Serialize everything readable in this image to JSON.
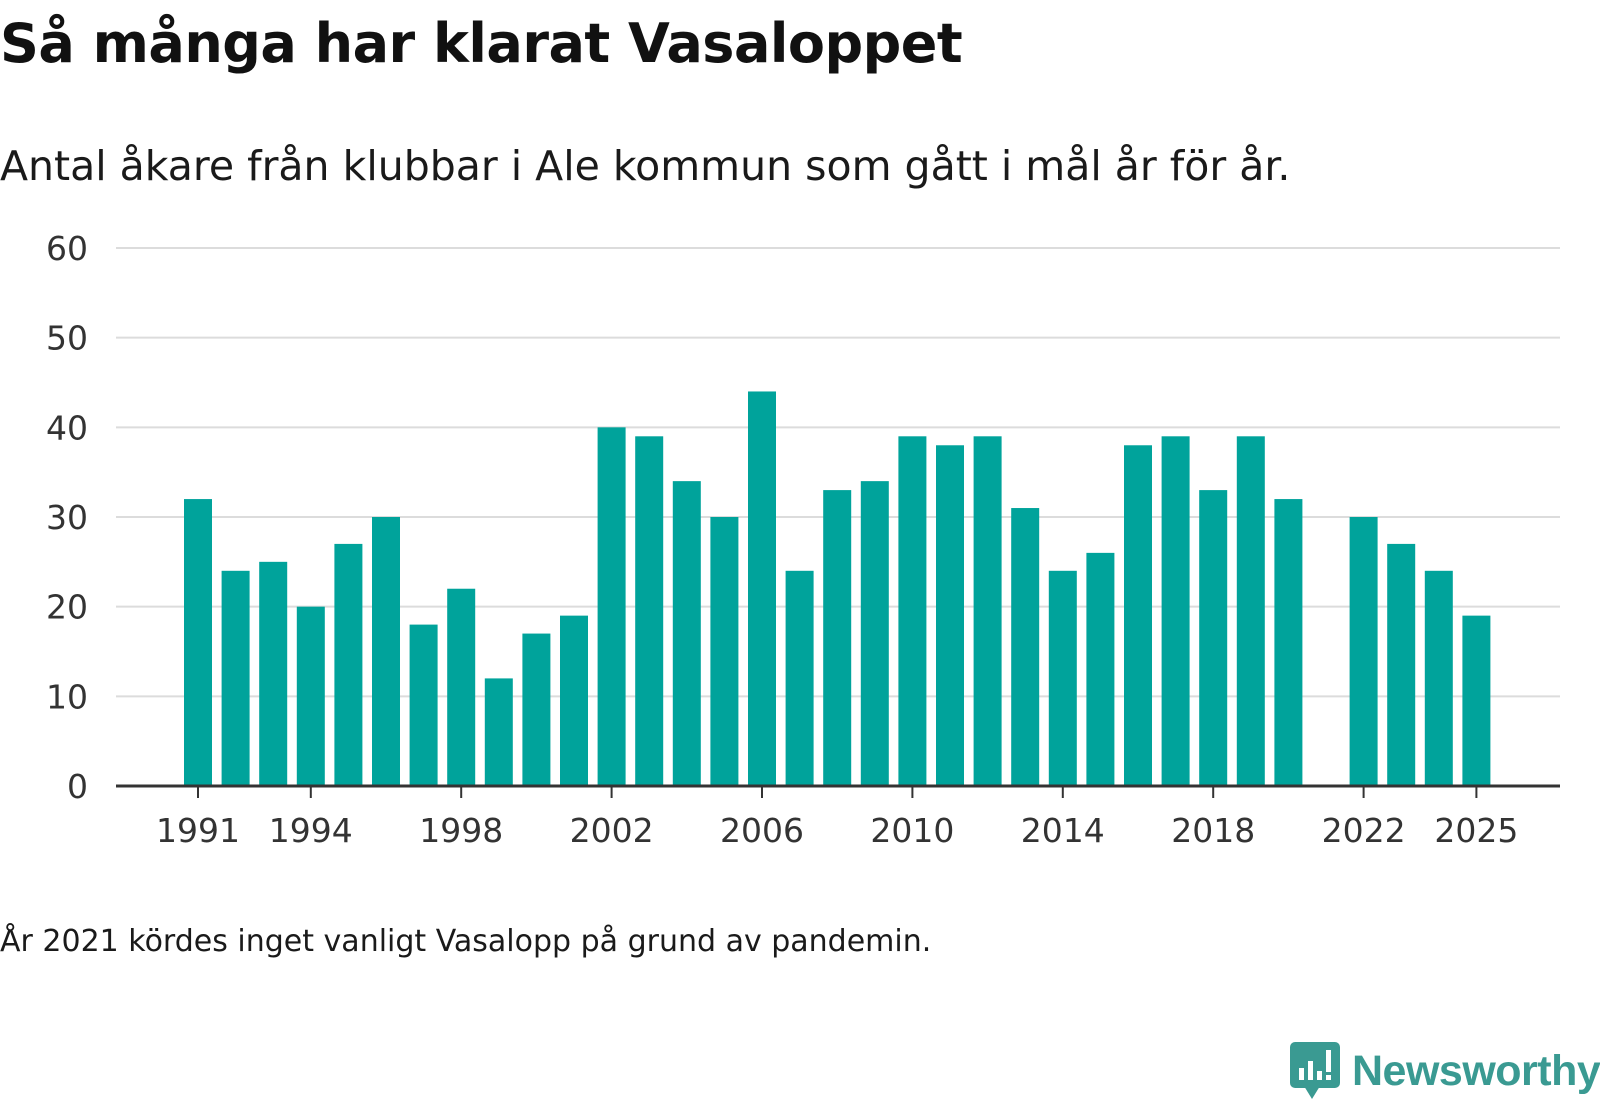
{
  "header": {
    "title": "Så många har klarat Vasaloppet",
    "subtitle": "Antal åkare från klubbar i Ale kommun som gått i mål år för år."
  },
  "footer": {
    "note": "År 2021 kördes inget vanligt Vasalopp på grund av pandemin."
  },
  "brand": {
    "name": "Newsworthy",
    "color": "#3a9a92",
    "logo_icon": "bar-chart-speech-bubble-icon"
  },
  "colors": {
    "bar": "#00a39b",
    "grid": "#dcdcdc",
    "axis": "#333333"
  },
  "chart_data": {
    "type": "bar",
    "title": "Så många har klarat Vasaloppet",
    "subtitle": "Antal åkare från klubbar i Ale kommun som gått i mål år för år.",
    "xlabel": "",
    "ylabel": "",
    "ylim": [
      0,
      60
    ],
    "yticks": [
      0,
      10,
      20,
      30,
      40,
      50,
      60
    ],
    "xtick_labels": [
      "1991",
      "1994",
      "1998",
      "2002",
      "2006",
      "2010",
      "2014",
      "2018",
      "2022",
      "2025"
    ],
    "grid": true,
    "legend": "none",
    "categories": [
      1991,
      1992,
      1993,
      1994,
      1995,
      1996,
      1997,
      1998,
      1999,
      2000,
      2001,
      2002,
      2003,
      2004,
      2005,
      2006,
      2007,
      2008,
      2009,
      2010,
      2011,
      2012,
      2013,
      2014,
      2015,
      2016,
      2017,
      2018,
      2019,
      2020,
      2021,
      2022,
      2023,
      2024,
      2025
    ],
    "values": [
      32,
      24,
      25,
      20,
      27,
      30,
      18,
      22,
      12,
      17,
      19,
      40,
      39,
      34,
      30,
      44,
      24,
      33,
      34,
      39,
      38,
      39,
      31,
      24,
      26,
      38,
      39,
      33,
      39,
      32,
      null,
      30,
      27,
      24,
      19
    ]
  }
}
